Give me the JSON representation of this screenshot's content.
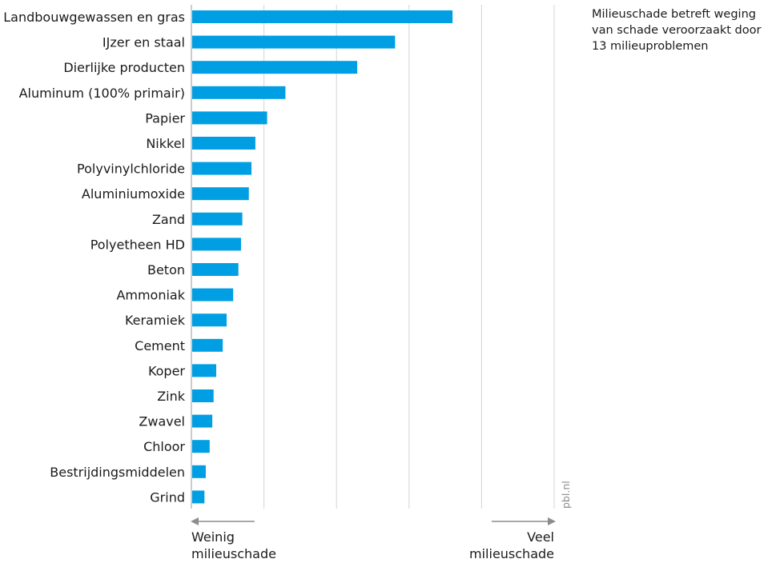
{
  "chart_data": {
    "type": "bar",
    "orientation": "horizontal",
    "categories": [
      "Landbouwgewassen en gras",
      "IJzer en staal",
      "Dierlijke producten",
      "Aluminum (100% primair)",
      "Papier",
      "Nikkel",
      "Polyvinylchloride",
      "Aluminiumoxide",
      "Zand",
      "Polyetheen HD",
      "Beton",
      "Ammoniak",
      "Keramiek",
      "Cement",
      "Koper",
      "Zink",
      "Zwavel",
      "Chloor",
      "Bestrijdingsmiddelen",
      "Grind"
    ],
    "values": [
      100,
      78,
      63.5,
      36,
      29,
      24.5,
      23,
      22,
      19.5,
      19,
      18,
      16,
      13.5,
      12,
      9.5,
      8.5,
      8,
      7,
      5.5,
      5
    ],
    "xlim": [
      0,
      138
    ],
    "grid": true,
    "bar_color": "#009fe3",
    "legend": "none",
    "x_left_label": [
      "Weinig",
      "milieuschade"
    ],
    "x_right_label": [
      "Veel",
      "milieuschade"
    ]
  },
  "note": "Milieuschade betreft weging van schade veroorzaakt door 13 milieuproblemen",
  "source": "pbl.nl"
}
